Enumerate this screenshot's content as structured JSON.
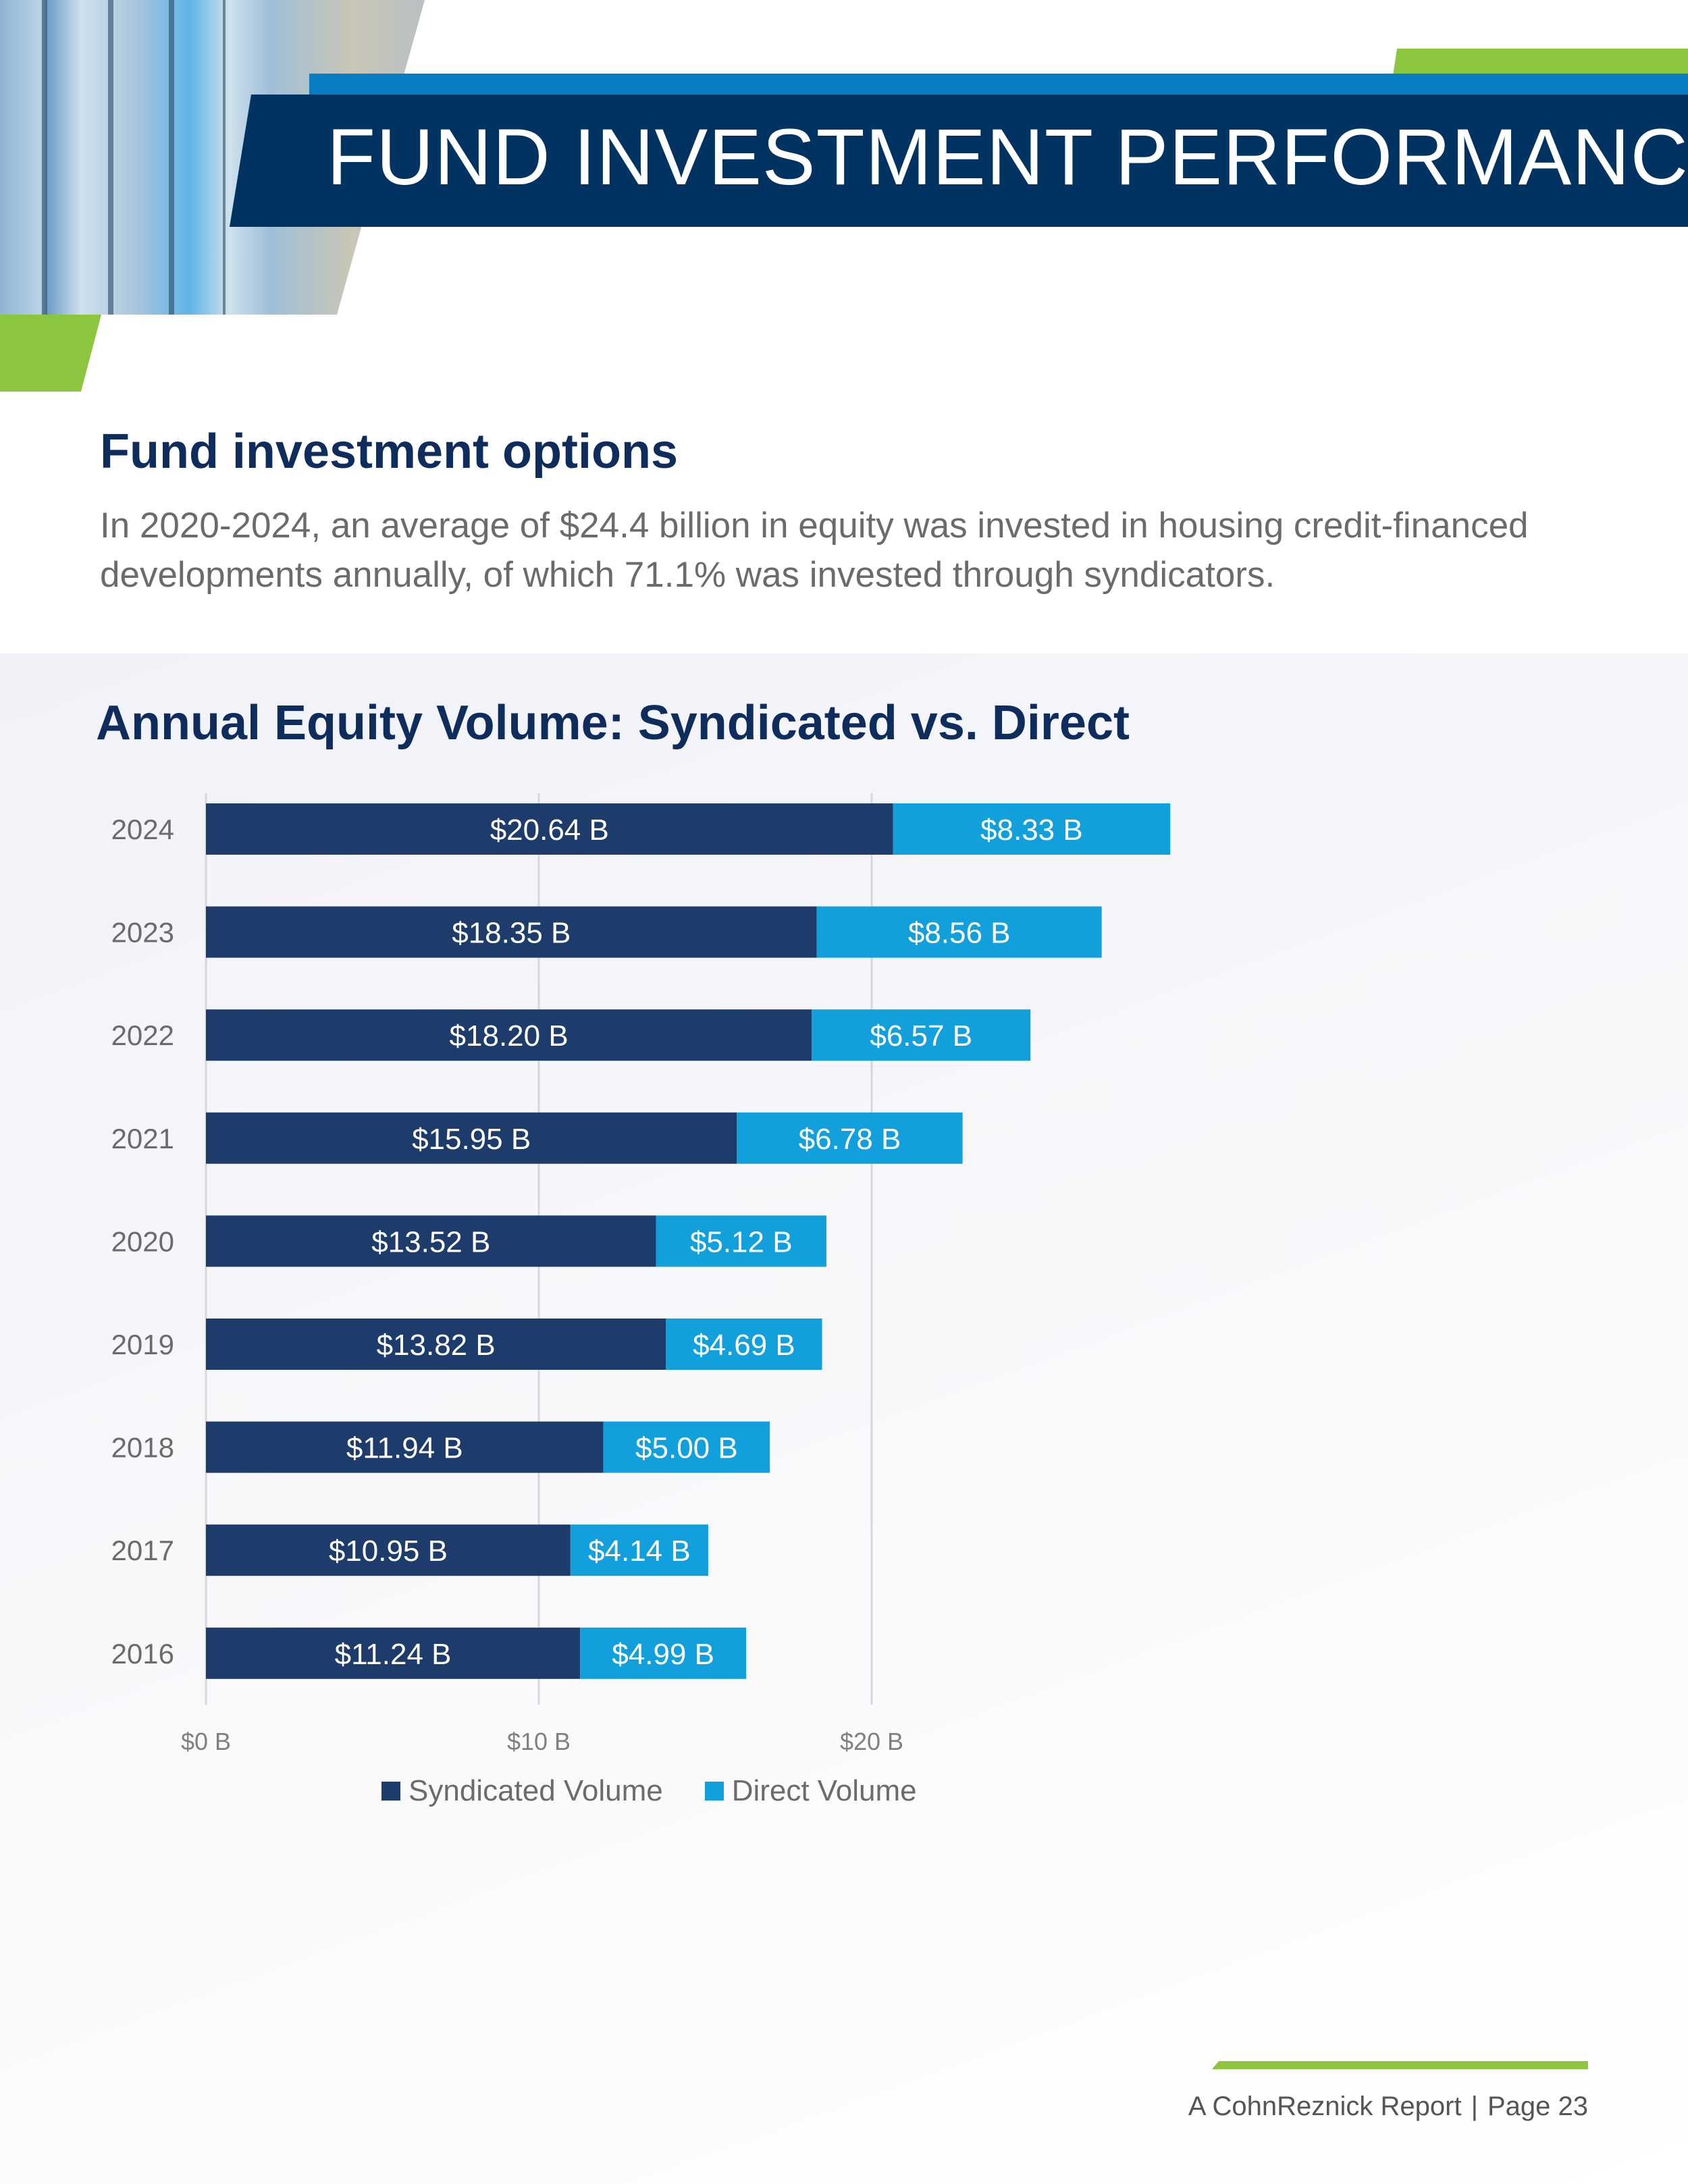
{
  "header": {
    "title": "FUND INVESTMENT PERFORMANCE"
  },
  "section": {
    "heading": "Fund investment options",
    "body": "In 2020-2024, an average of $24.4 billion in equity was invested in housing credit-financed developments annually, of which 71.1% was invested through syndicators."
  },
  "colors": {
    "syndicated": "#1d3b6b",
    "direct": "#12a0dc",
    "navy": "#003361",
    "green": "#8cc63f"
  },
  "chart_data": {
    "type": "bar",
    "orientation": "horizontal",
    "stacked": true,
    "title": "Annual Equity Volume: Syndicated vs. Direct",
    "categories": [
      "2024",
      "2023",
      "2022",
      "2021",
      "2020",
      "2019",
      "2018",
      "2017",
      "2016"
    ],
    "series": [
      {
        "name": "Syndicated Volume",
        "color": "#1d3b6b",
        "values": [
          20.64,
          18.35,
          18.2,
          15.95,
          13.52,
          13.82,
          11.94,
          10.95,
          11.24
        ],
        "labels": [
          "$20.64 B",
          "$18.35 B",
          "$18.20 B",
          "$15.95 B",
          "$13.52 B",
          "$13.82 B",
          "$11.94 B",
          "$10.95 B",
          "$11.24 B"
        ]
      },
      {
        "name": "Direct Volume",
        "color": "#12a0dc",
        "values": [
          8.33,
          8.56,
          6.57,
          6.78,
          5.12,
          4.69,
          5.0,
          4.14,
          4.99
        ],
        "labels": [
          "$8.33 B",
          "$8.56 B",
          "$6.57 B",
          "$6.78 B",
          "$5.12 B",
          "$4.69 B",
          "$5.00 B",
          "$4.14 B",
          "$4.99 B"
        ]
      }
    ],
    "xticks": [
      0,
      10,
      20
    ],
    "xtick_labels": [
      "$0 B",
      "$10 B",
      "$20 B"
    ],
    "grid": true,
    "legend": "bottom"
  },
  "footer": {
    "report": "A CohnReznick Report",
    "page": "Page 23"
  }
}
